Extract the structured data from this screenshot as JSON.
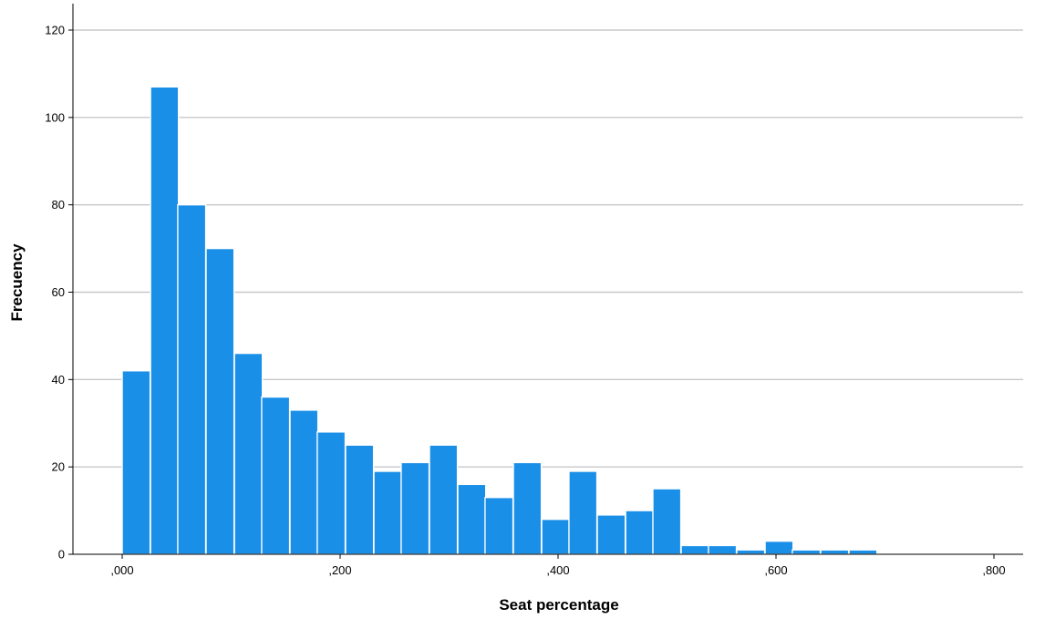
{
  "chart_data": {
    "type": "bar",
    "title": "",
    "xlabel": "Seat percentage",
    "ylabel": "Frecuency",
    "bar_color": "#1a8fe8",
    "grid": true,
    "legend": "none",
    "xlim": [
      -0.04,
      0.822
    ],
    "ylim": [
      0,
      120
    ],
    "bin_width": 0.02564,
    "bins": [
      {
        "x0": 0.0,
        "value": 42
      },
      {
        "x0": 0.026,
        "value": 107
      },
      {
        "x0": 0.051,
        "value": 80
      },
      {
        "x0": 0.077,
        "value": 70
      },
      {
        "x0": 0.103,
        "value": 46
      },
      {
        "x0": 0.128,
        "value": 36
      },
      {
        "x0": 0.154,
        "value": 33
      },
      {
        "x0": 0.179,
        "value": 28
      },
      {
        "x0": 0.205,
        "value": 25
      },
      {
        "x0": 0.231,
        "value": 19
      },
      {
        "x0": 0.256,
        "value": 21
      },
      {
        "x0": 0.282,
        "value": 25
      },
      {
        "x0": 0.308,
        "value": 16
      },
      {
        "x0": 0.333,
        "value": 13
      },
      {
        "x0": 0.359,
        "value": 21
      },
      {
        "x0": 0.385,
        "value": 8
      },
      {
        "x0": 0.41,
        "value": 19
      },
      {
        "x0": 0.436,
        "value": 9
      },
      {
        "x0": 0.462,
        "value": 10
      },
      {
        "x0": 0.487,
        "value": 15
      },
      {
        "x0": 0.513,
        "value": 2
      },
      {
        "x0": 0.538,
        "value": 2
      },
      {
        "x0": 0.564,
        "value": 1
      },
      {
        "x0": 0.59,
        "value": 3
      },
      {
        "x0": 0.615,
        "value": 1
      },
      {
        "x0": 0.641,
        "value": 1
      },
      {
        "x0": 0.667,
        "value": 1
      }
    ],
    "x_ticks": [
      {
        "value": 0.0,
        "label": ",000"
      },
      {
        "value": 0.2,
        "label": ",200"
      },
      {
        "value": 0.4,
        "label": ",400"
      },
      {
        "value": 0.6,
        "label": ",600"
      },
      {
        "value": 0.8,
        "label": ",800"
      }
    ],
    "y_ticks": [
      {
        "value": 0,
        "label": "0"
      },
      {
        "value": 20,
        "label": "20"
      },
      {
        "value": 40,
        "label": "40"
      },
      {
        "value": 60,
        "label": "60"
      },
      {
        "value": 80,
        "label": "80"
      },
      {
        "value": 100,
        "label": "100"
      },
      {
        "value": 120,
        "label": "120"
      }
    ]
  }
}
